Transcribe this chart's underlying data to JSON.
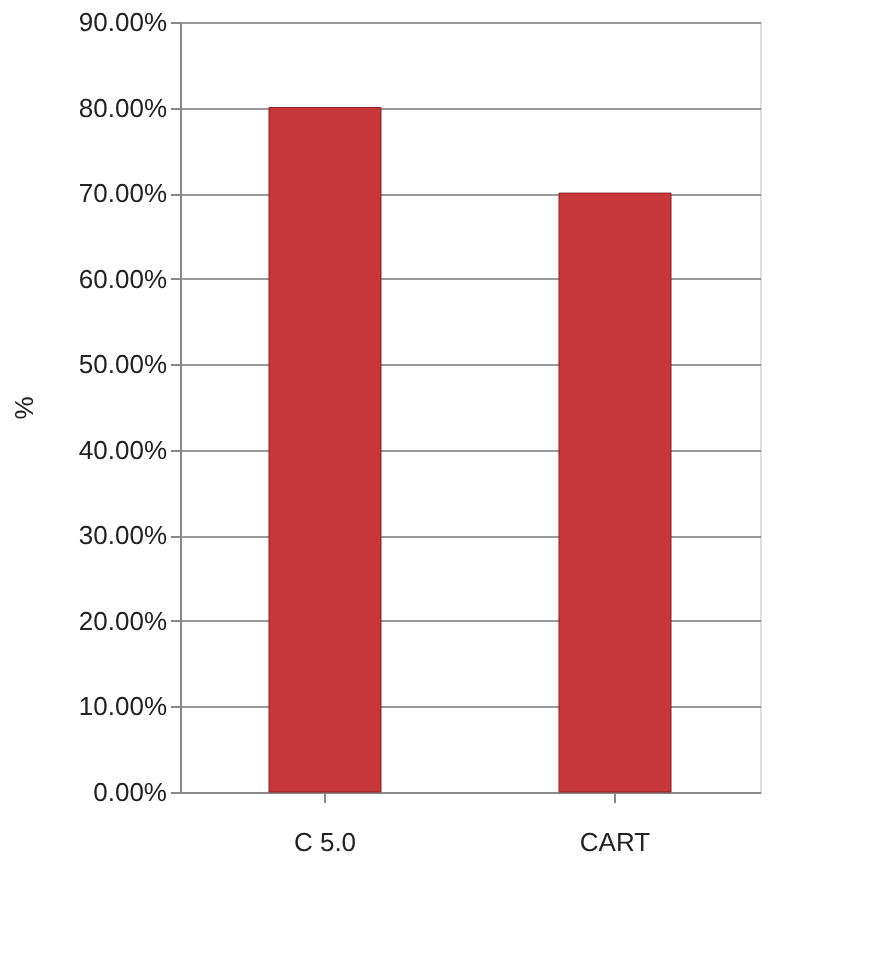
{
  "chart_data": {
    "type": "bar",
    "ylabel": "%",
    "categories": [
      "C 5.0",
      "CART"
    ],
    "values": [
      80,
      70
    ],
    "color": "#c8383a",
    "ylim": [
      0,
      90
    ],
    "yticks": [
      {
        "value": 0,
        "label": "0.00%"
      },
      {
        "value": 10,
        "label": "10.00%"
      },
      {
        "value": 20,
        "label": "20.00%"
      },
      {
        "value": 30,
        "label": "30.00%"
      },
      {
        "value": 40,
        "label": "40.00%"
      },
      {
        "value": 50,
        "label": "50.00%"
      },
      {
        "value": 60,
        "label": "60.00%"
      },
      {
        "value": 70,
        "label": "70.00%"
      },
      {
        "value": 80,
        "label": "80.00%"
      },
      {
        "value": 90,
        "label": "90.00%"
      }
    ],
    "grid": "y"
  }
}
